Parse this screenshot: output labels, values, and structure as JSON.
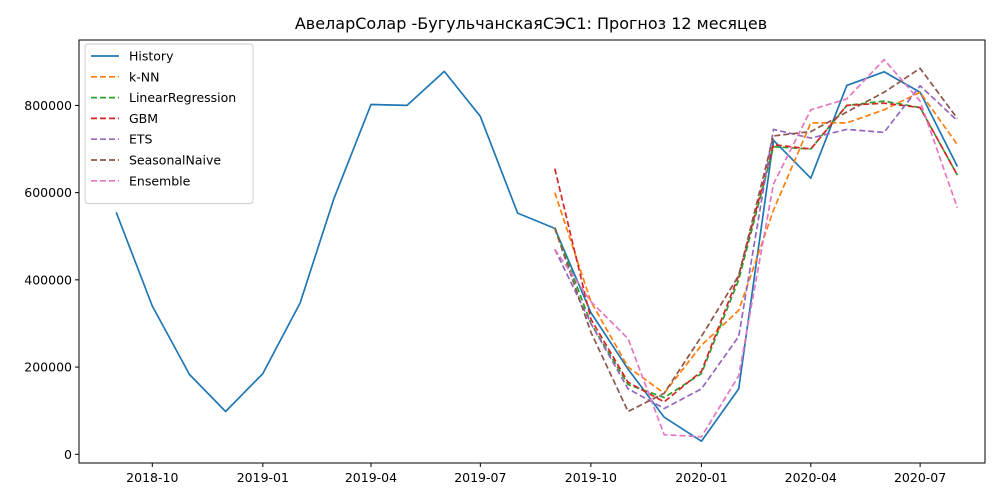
{
  "chart_data": {
    "type": "line",
    "title": "АвеларСолар -БугульчанскаяСЭС1: Прогноз 12 месяцев",
    "xlabel": "",
    "ylabel": "",
    "x_axis": {
      "min": "2018-08-01",
      "max": "2020-08-24",
      "ticks": [
        "2018-10-01",
        "2019-01-01",
        "2019-04-01",
        "2019-07-01",
        "2019-10-01",
        "2020-01-01",
        "2020-04-01",
        "2020-07-01"
      ],
      "tick_labels": [
        "2018-10",
        "2019-01",
        "2019-04",
        "2019-07",
        "2019-10",
        "2020-01",
        "2020-04",
        "2020-07"
      ]
    },
    "y_axis": {
      "min": -20000,
      "max": 950000,
      "ticks": [
        0,
        200000,
        400000,
        600000,
        800000
      ],
      "tick_labels": [
        "0",
        "200000",
        "400000",
        "600000",
        "800000"
      ]
    },
    "grid": false,
    "legend": "top-left",
    "history": {
      "name": "History",
      "color": "#1f77b4",
      "dash": "solid",
      "dates": [
        "2018-09-01",
        "2018-10-01",
        "2018-11-01",
        "2018-12-01",
        "2019-01-01",
        "2019-02-01",
        "2019-03-01",
        "2019-04-01",
        "2019-05-01",
        "2019-06-01",
        "2019-07-01",
        "2019-08-01",
        "2019-09-01",
        "2019-10-01",
        "2019-11-01",
        "2019-12-01",
        "2020-01-01",
        "2020-02-01",
        "2020-03-01",
        "2020-04-01",
        "2020-05-01",
        "2020-06-01",
        "2020-07-01",
        "2020-08-01"
      ],
      "values": [
        555000,
        340000,
        183000,
        98000,
        185000,
        347000,
        585000,
        802000,
        800000,
        878000,
        775000,
        553000,
        518000,
        325000,
        195000,
        85000,
        30000,
        150000,
        720000,
        633000,
        846000,
        877000,
        830000,
        660000
      ]
    },
    "forecast_dates": [
      "2019-09-01",
      "2019-10-01",
      "2019-11-01",
      "2019-12-01",
      "2020-01-01",
      "2020-02-01",
      "2020-03-01",
      "2020-04-01",
      "2020-05-01",
      "2020-06-01",
      "2020-07-01",
      "2020-08-01"
    ],
    "series": [
      {
        "name": "k-NN",
        "color": "#ff7f0e",
        "dash": "dashed",
        "values": [
          600000,
          350000,
          200000,
          140000,
          250000,
          330000,
          560000,
          760000,
          760000,
          790000,
          830000,
          710000
        ]
      },
      {
        "name": "LinearRegression",
        "color": "#2ca02c",
        "dash": "dashed",
        "values": [
          520000,
          300000,
          160000,
          130000,
          185000,
          400000,
          705000,
          700000,
          800000,
          810000,
          795000,
          640000
        ]
      },
      {
        "name": "GBM",
        "color": "#d62728",
        "dash": "dashed",
        "values": [
          655000,
          310000,
          165000,
          120000,
          190000,
          410000,
          710000,
          700000,
          800000,
          805000,
          795000,
          640000
        ]
      },
      {
        "name": "ETS",
        "color": "#9467bd",
        "dash": "dashed",
        "values": [
          470000,
          300000,
          150000,
          105000,
          150000,
          270000,
          745000,
          725000,
          745000,
          738000,
          845000,
          765000
        ]
      },
      {
        "name": "SeasonalNaive",
        "color": "#8c564b",
        "dash": "dashed",
        "values": [
          518000,
          280000,
          98000,
          140000,
          270000,
          410000,
          730000,
          740000,
          785000,
          830000,
          885000,
          770000
        ]
      },
      {
        "name": "Ensemble",
        "color": "#e377c2",
        "dash": "dashed",
        "values": [
          470000,
          350000,
          265000,
          45000,
          40000,
          180000,
          620000,
          790000,
          815000,
          905000,
          810000,
          565000
        ]
      }
    ]
  }
}
